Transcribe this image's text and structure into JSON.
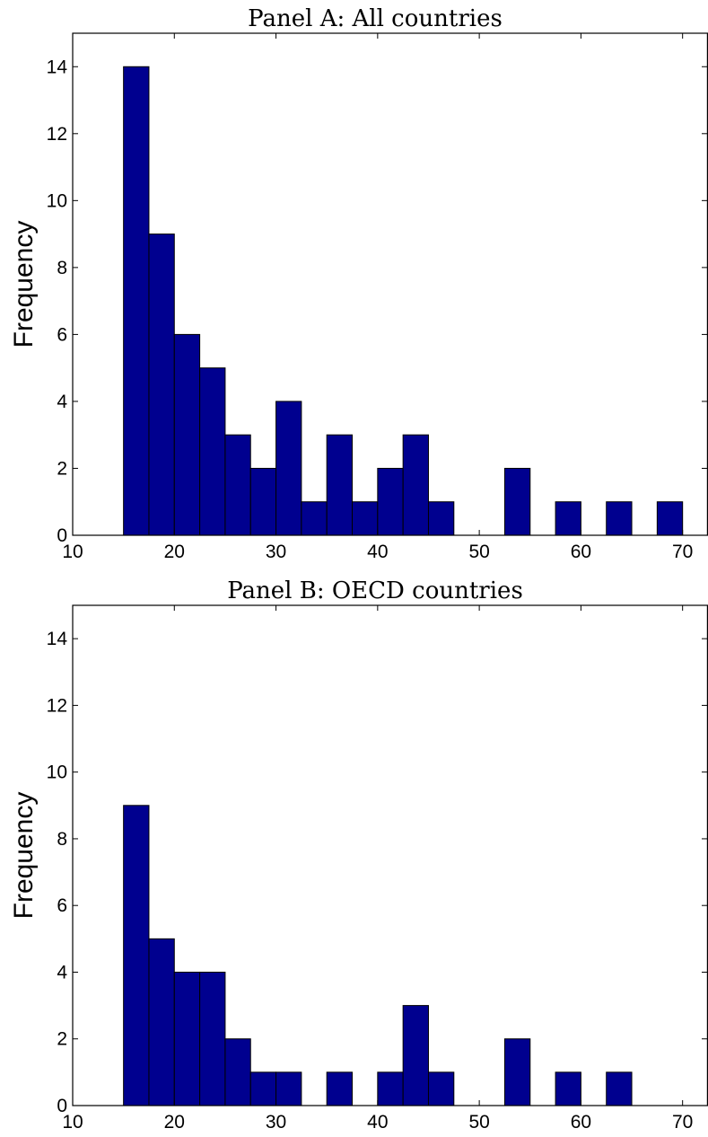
{
  "chart_data": [
    {
      "type": "bar",
      "title": "Panel A: All countries",
      "ylabel": "Frequency",
      "xlabel": "",
      "xlim": [
        10,
        72.5
      ],
      "ylim": [
        0,
        15
      ],
      "bin_width": 2.5,
      "x_ticks": [
        10,
        20,
        30,
        40,
        50,
        60,
        70
      ],
      "y_ticks": [
        0,
        2,
        4,
        6,
        8,
        10,
        12,
        14
      ],
      "bins": [
        {
          "start": 15.0,
          "value": 14
        },
        {
          "start": 17.5,
          "value": 9
        },
        {
          "start": 20.0,
          "value": 6
        },
        {
          "start": 22.5,
          "value": 5
        },
        {
          "start": 25.0,
          "value": 3
        },
        {
          "start": 27.5,
          "value": 2
        },
        {
          "start": 30.0,
          "value": 4
        },
        {
          "start": 32.5,
          "value": 1
        },
        {
          "start": 35.0,
          "value": 3
        },
        {
          "start": 37.5,
          "value": 1
        },
        {
          "start": 40.0,
          "value": 2
        },
        {
          "start": 42.5,
          "value": 3
        },
        {
          "start": 45.0,
          "value": 1
        },
        {
          "start": 47.5,
          "value": 0
        },
        {
          "start": 50.0,
          "value": 0
        },
        {
          "start": 52.5,
          "value": 2
        },
        {
          "start": 55.0,
          "value": 0
        },
        {
          "start": 57.5,
          "value": 1
        },
        {
          "start": 60.0,
          "value": 0
        },
        {
          "start": 62.5,
          "value": 1
        },
        {
          "start": 65.0,
          "value": 0
        },
        {
          "start": 67.5,
          "value": 1
        }
      ],
      "bar_color": "#00008f",
      "grid": false
    },
    {
      "type": "bar",
      "title": "Panel B: OECD countries",
      "ylabel": "Frequency",
      "xlabel": "",
      "xlim": [
        10,
        72.5
      ],
      "ylim": [
        0,
        15
      ],
      "bin_width": 2.5,
      "x_ticks": [
        10,
        20,
        30,
        40,
        50,
        60,
        70
      ],
      "y_ticks": [
        0,
        2,
        4,
        6,
        8,
        10,
        12,
        14
      ],
      "bins": [
        {
          "start": 15.0,
          "value": 9
        },
        {
          "start": 17.5,
          "value": 5
        },
        {
          "start": 20.0,
          "value": 4
        },
        {
          "start": 22.5,
          "value": 4
        },
        {
          "start": 25.0,
          "value": 2
        },
        {
          "start": 27.5,
          "value": 1
        },
        {
          "start": 30.0,
          "value": 1
        },
        {
          "start": 32.5,
          "value": 0
        },
        {
          "start": 35.0,
          "value": 1
        },
        {
          "start": 37.5,
          "value": 0
        },
        {
          "start": 40.0,
          "value": 1
        },
        {
          "start": 42.5,
          "value": 3
        },
        {
          "start": 45.0,
          "value": 1
        },
        {
          "start": 47.5,
          "value": 0
        },
        {
          "start": 50.0,
          "value": 0
        },
        {
          "start": 52.5,
          "value": 2
        },
        {
          "start": 55.0,
          "value": 0
        },
        {
          "start": 57.5,
          "value": 1
        },
        {
          "start": 60.0,
          "value": 0
        },
        {
          "start": 62.5,
          "value": 1
        },
        {
          "start": 65.0,
          "value": 0
        },
        {
          "start": 67.5,
          "value": 0
        }
      ],
      "bar_color": "#00008f",
      "grid": false
    }
  ]
}
